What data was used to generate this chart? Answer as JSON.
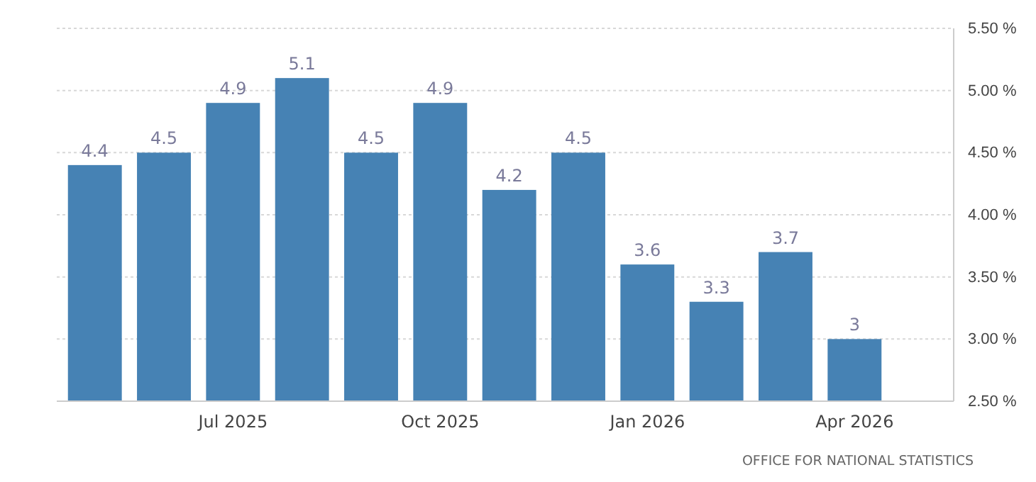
{
  "chart_data": {
    "type": "bar",
    "categories": [
      null,
      null,
      "Jul 2025",
      null,
      null,
      "Oct 2025",
      null,
      null,
      "Jan 2026",
      null,
      null,
      "Apr 2026"
    ],
    "values": [
      4.4,
      4.5,
      4.9,
      5.1,
      4.5,
      4.9,
      4.2,
      4.5,
      3.6,
      3.3,
      3.7,
      3
    ],
    "color": "#4682b4",
    "ylim": [
      2.5,
      5.5
    ],
    "yticks": [
      {
        "value": 2.5,
        "label": "2.50 %"
      },
      {
        "value": 3,
        "label": "3.00 %"
      },
      {
        "value": 3.5,
        "label": "3.50 %"
      },
      {
        "value": 4,
        "label": "4.00 %"
      },
      {
        "value": 4.5,
        "label": "4.50 %"
      },
      {
        "value": 5,
        "label": "5.00 %"
      },
      {
        "value": 5.5,
        "label": "5.50 %"
      }
    ],
    "grid": "y",
    "data_labels": true,
    "annotations": [
      "OFFICE FOR NATIONAL STATISTICS"
    ]
  }
}
